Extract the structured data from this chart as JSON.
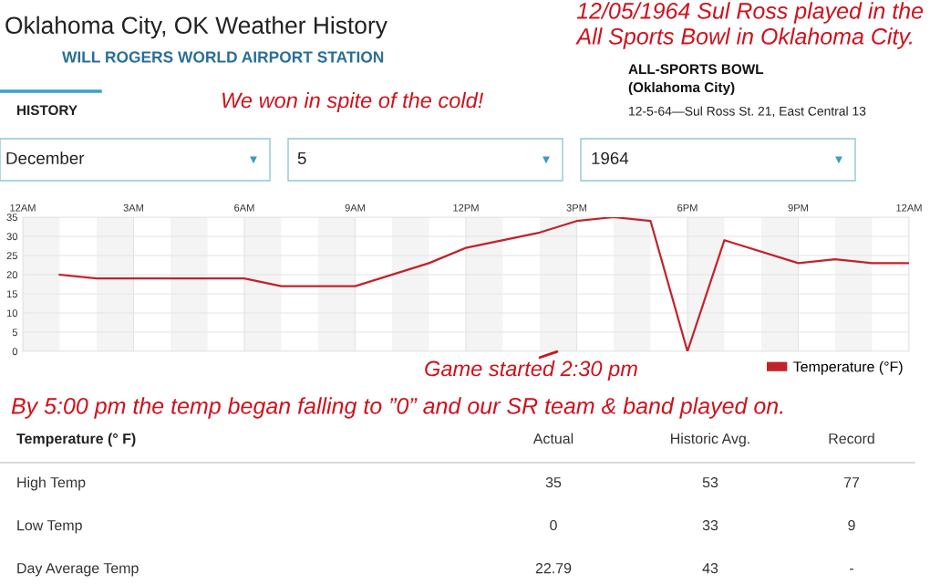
{
  "chart_data": {
    "type": "line",
    "title": "Oklahoma City, OK Weather History",
    "subtitle": "WILL ROGERS WORLD AIRPORT STATION",
    "x": [
      "1964-12-05T01:00",
      "1964-12-05T02:00",
      "1964-12-05T06:00",
      "1964-12-05T07:00",
      "1964-12-05T09:00",
      "1964-12-05T11:00",
      "1964-12-05T12:00",
      "1964-12-05T14:00",
      "1964-12-05T15:00",
      "1964-12-05T16:00",
      "1964-12-05T17:00",
      "1964-12-05T18:00",
      "1964-12-05T19:00",
      "1964-12-05T21:00",
      "1964-12-05T22:00",
      "1964-12-05T23:00",
      "1964-12-06T00:00"
    ],
    "series": [
      {
        "name": "Temperature (°F)",
        "color": "#c4222b",
        "values": [
          20,
          19,
          19,
          17,
          17,
          23,
          27,
          31,
          34,
          35,
          34,
          0,
          29,
          23,
          24,
          23,
          23
        ]
      }
    ],
    "xlim": [
      "1964-12-05T00:00",
      "1964-12-06T00:00"
    ],
    "xticks": [
      {
        "value": "1964-12-05T00:00",
        "label": "12AM"
      },
      {
        "value": "1964-12-05T03:00",
        "label": "3AM"
      },
      {
        "value": "1964-12-05T06:00",
        "label": "6AM"
      },
      {
        "value": "1964-12-05T09:00",
        "label": "9AM"
      },
      {
        "value": "1964-12-05T12:00",
        "label": "12PM"
      },
      {
        "value": "1964-12-05T15:00",
        "label": "3PM"
      },
      {
        "value": "1964-12-05T18:00",
        "label": "6PM"
      },
      {
        "value": "1964-12-05T21:00",
        "label": "9PM"
      },
      {
        "value": "1964-12-06T00:00",
        "label": "12AM"
      }
    ],
    "ylim": [
      0,
      35
    ],
    "yticks": [
      0,
      5,
      10,
      15,
      20,
      25,
      30,
      35
    ],
    "grid": true,
    "legend": "bottom right",
    "marker": "none",
    "line_style": "solid",
    "bands": [
      {
        "axis": "x",
        "from": "1964-12-05T00:00",
        "to": "1964-12-05T01:00",
        "color": "#f4f4f4"
      },
      {
        "axis": "x",
        "from": "1964-12-05T02:00",
        "to": "1964-12-05T03:00",
        "color": "#f4f4f4"
      },
      {
        "axis": "x",
        "from": "1964-12-05T04:00",
        "to": "1964-12-05T05:00",
        "color": "#f4f4f4"
      },
      {
        "axis": "x",
        "from": "1964-12-05T06:00",
        "to": "1964-12-05T07:00",
        "color": "#f4f4f4"
      },
      {
        "axis": "x",
        "from": "1964-12-05T08:00",
        "to": "1964-12-05T09:00",
        "color": "#f4f4f4"
      },
      {
        "axis": "x",
        "from": "1964-12-05T10:00",
        "to": "1964-12-05T11:00",
        "color": "#f4f4f4"
      },
      {
        "axis": "x",
        "from": "1964-12-05T12:00",
        "to": "1964-12-05T13:00",
        "color": "#f4f4f4"
      },
      {
        "axis": "x",
        "from": "1964-12-05T14:00",
        "to": "1964-12-05T15:00",
        "color": "#f4f4f4"
      },
      {
        "axis": "x",
        "from": "1964-12-05T16:00",
        "to": "1964-12-05T17:00",
        "color": "#f4f4f4"
      },
      {
        "axis": "x",
        "from": "1964-12-05T18:00",
        "to": "1964-12-05T19:00",
        "color": "#f4f4f4"
      },
      {
        "axis": "x",
        "from": "1964-12-05T20:00",
        "to": "1964-12-05T21:00",
        "color": "#f4f4f4"
      },
      {
        "axis": "x",
        "from": "1964-12-05T22:00",
        "to": "1964-12-05T23:00",
        "color": "#f4f4f4"
      }
    ],
    "annotations": [
      "12/05/1964 Sul Ross played in the",
      "All Sports Bowl in Oklahoma City.",
      "We won in spite of the cold!",
      "ALL-SPORTS BOWL",
      "(Oklahoma City)",
      "12-5-64—Sul Ross St. 21, East Central 13",
      "HISTORY",
      "December",
      "5",
      "1964",
      {
        "text": "Game started 2:30 pm",
        "x": "1964-12-05T14:30",
        "y": 0
      },
      "By 5:00 pm the temp began falling to ”0” and our SR team & band played on.",
      "Temperature (° F)",
      "Actual",
      "Historic Avg.",
      "Record",
      "High Temp",
      "35",
      "53",
      "77",
      "Low Temp",
      "0",
      "33",
      "9",
      "Day Average Temp",
      "22.79",
      "43",
      "-"
    ]
  }
}
